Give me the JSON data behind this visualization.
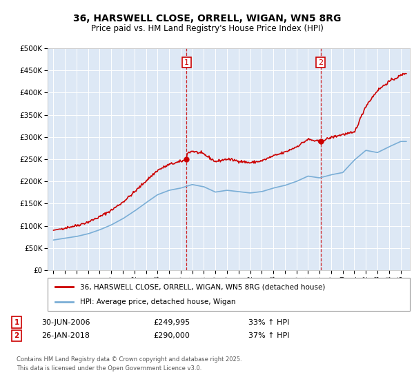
{
  "title": "36, HARSWELL CLOSE, ORRELL, WIGAN, WN5 8RG",
  "subtitle": "Price paid vs. HM Land Registry's House Price Index (HPI)",
  "legend_label_red": "36, HARSWELL CLOSE, ORRELL, WIGAN, WN5 8RG (detached house)",
  "legend_label_blue": "HPI: Average price, detached house, Wigan",
  "sale1_date": "30-JUN-2006",
  "sale1_price": "£249,995",
  "sale1_pct": "33% ↑ HPI",
  "sale2_date": "26-JAN-2018",
  "sale2_price": "£290,000",
  "sale2_pct": "37% ↑ HPI",
  "footnote1": "Contains HM Land Registry data © Crown copyright and database right 2025.",
  "footnote2": "This data is licensed under the Open Government Licence v3.0.",
  "sale1_x": 2006.5,
  "sale2_x": 2018.08,
  "sale1_y": 249995,
  "sale2_y": 290000,
  "ylim": [
    0,
    500000
  ],
  "xlim": [
    1994.5,
    2025.8
  ],
  "bg_color": "#dde8f5",
  "red_color": "#cc0000",
  "blue_color": "#7aaed6",
  "grid_color": "#ffffff",
  "title_fontsize": 10,
  "subtitle_fontsize": 8.5
}
